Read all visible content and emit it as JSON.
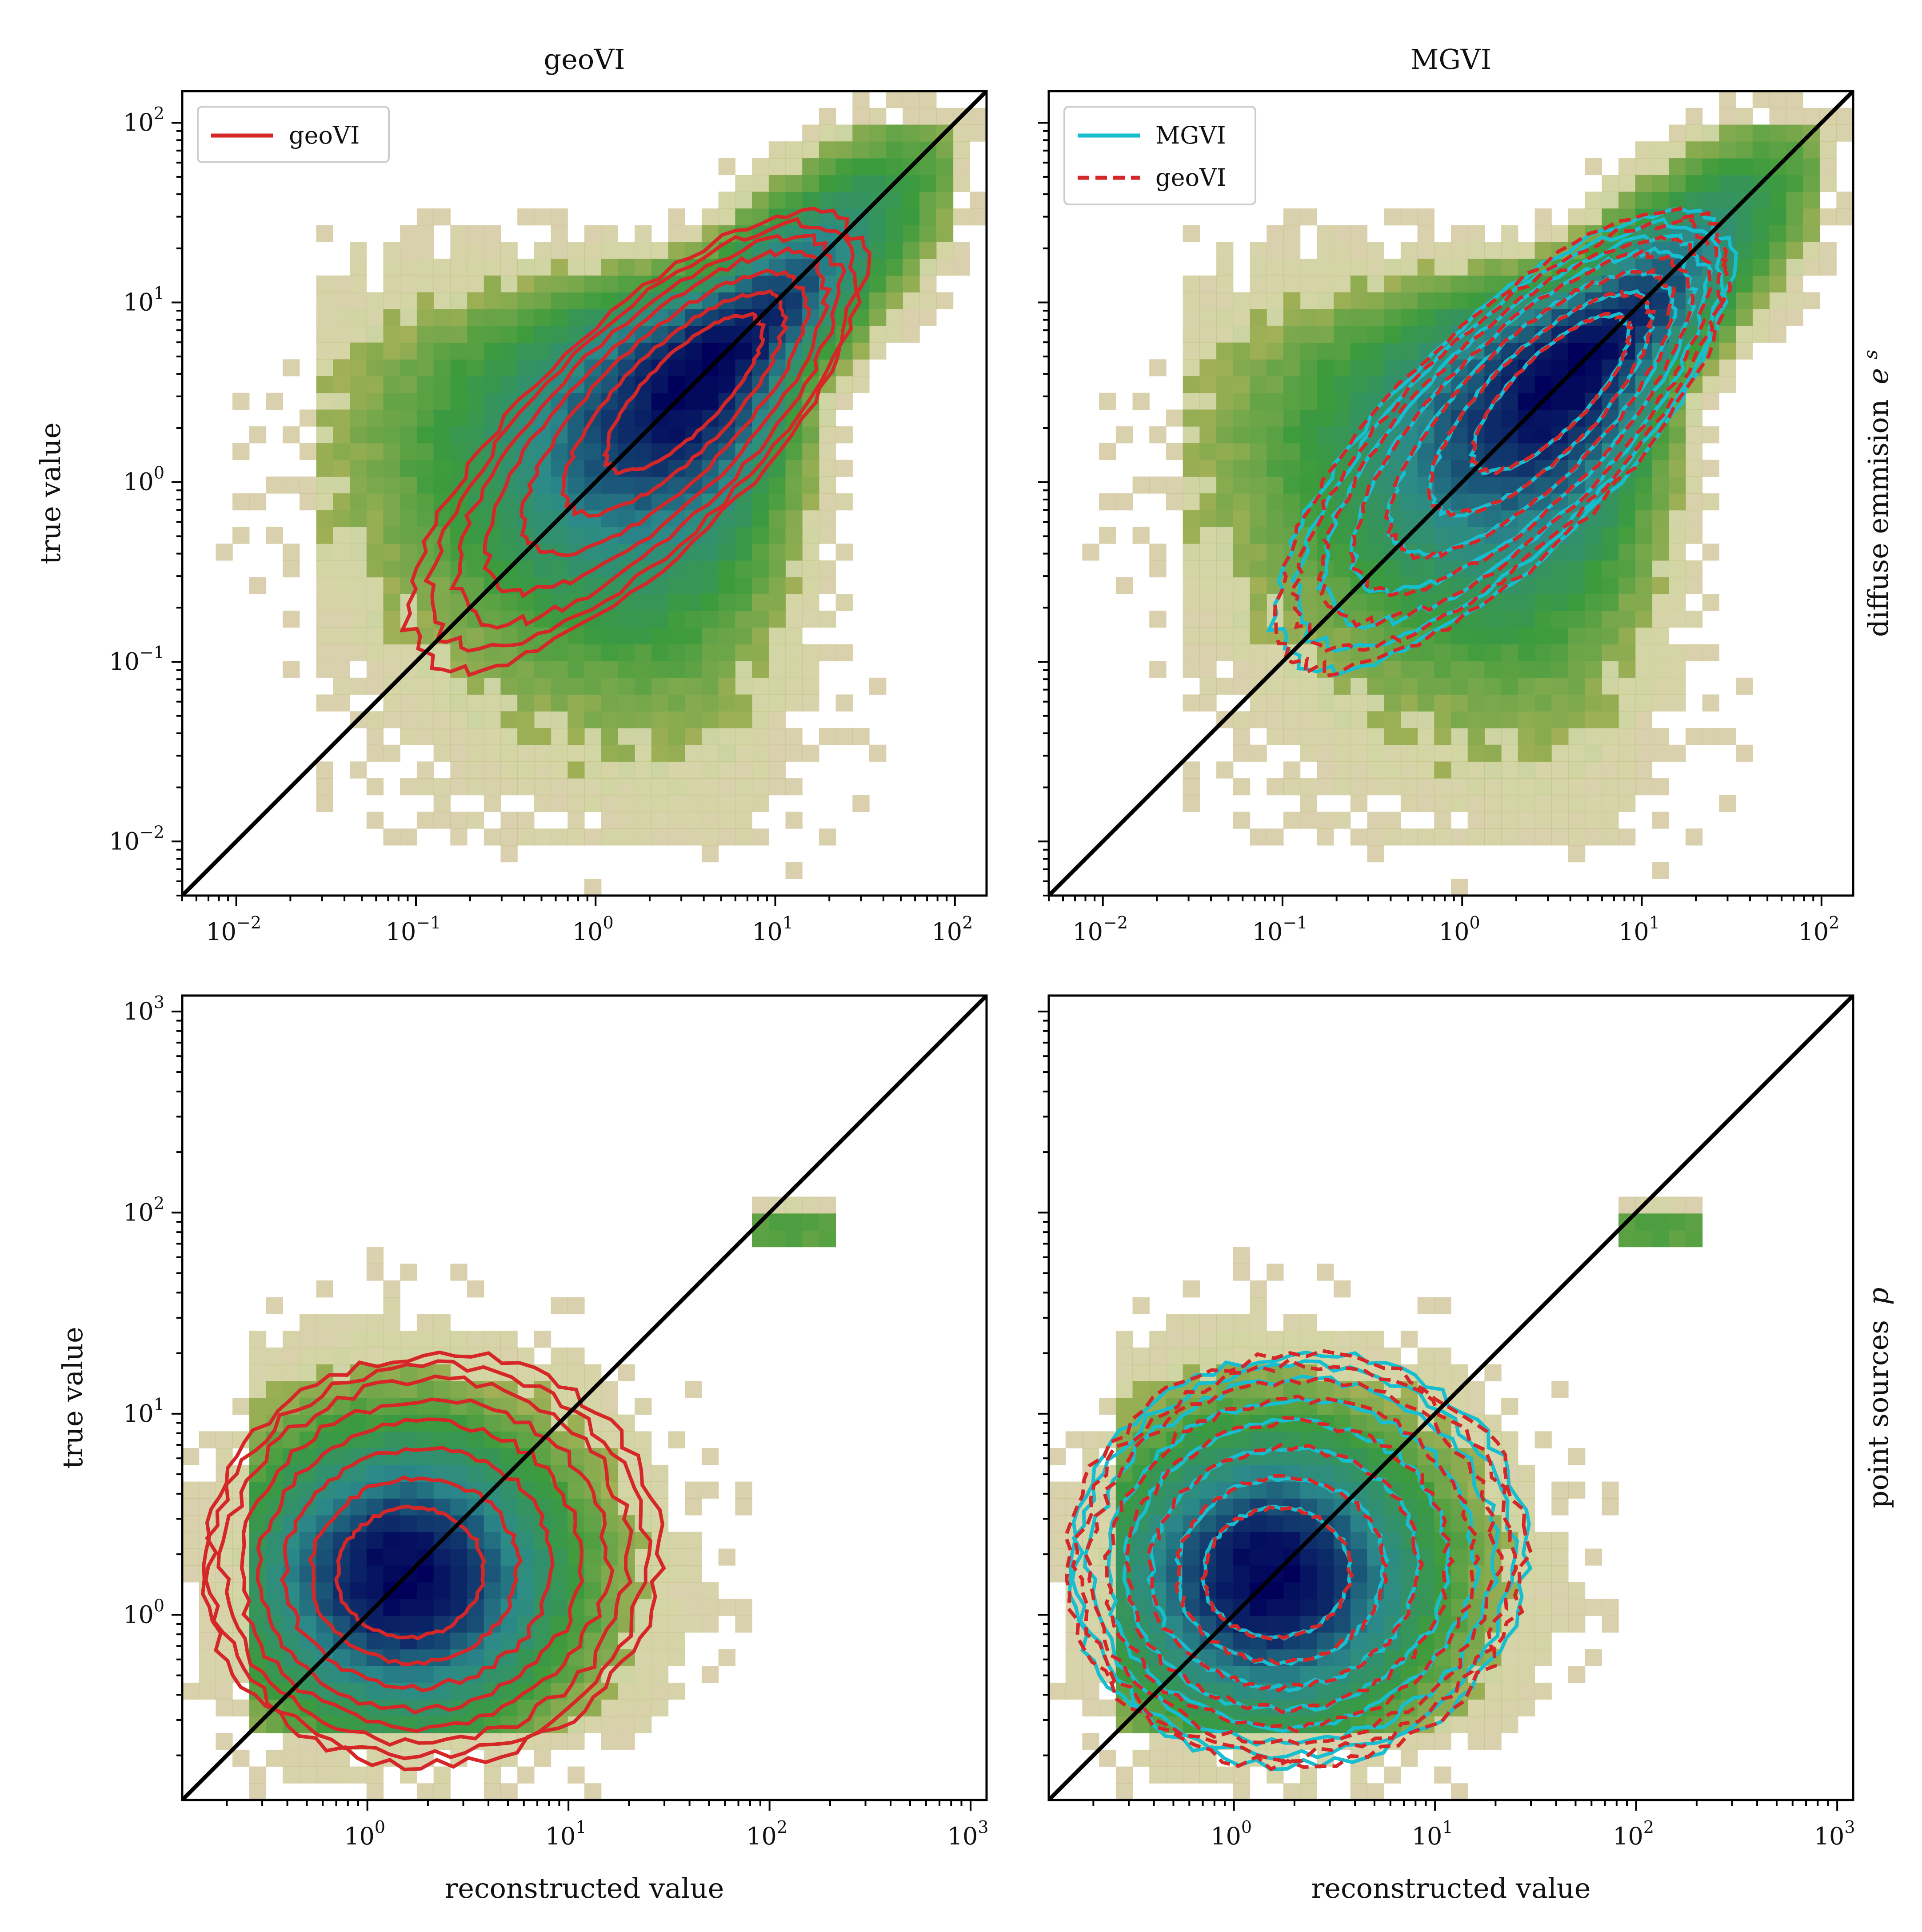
{
  "figure": {
    "column_titles": [
      "geoVI",
      "MGVI"
    ],
    "row_labels": [
      {
        "text": "diffuse emmision",
        "math": "e",
        "sup": "s"
      },
      {
        "text": "point sources",
        "math": "p",
        "sup": ""
      }
    ],
    "colors": {
      "geoVI": "#d62728",
      "MGVI": "#17becf",
      "identity_line": "#000000",
      "density_high": "#00005a",
      "density_mid": "#2b8a8a",
      "density_low": "#3c9b3c",
      "density_edge": "#b0b35a",
      "density_sparse": "#c8a080"
    }
  },
  "chart_data": [
    {
      "type": "heatmap",
      "panel": "top-left",
      "title": "geoVI",
      "xlabel": "",
      "ylabel": "true value",
      "xscale": "log",
      "yscale": "log",
      "xlim": [
        0.005,
        150
      ],
      "ylim": [
        0.005,
        150
      ],
      "xticks": [
        {
          "base": "10",
          "exp": "−2"
        },
        {
          "base": "10",
          "exp": "−1"
        },
        {
          "base": "10",
          "exp": "0"
        },
        {
          "base": "10",
          "exp": "1"
        },
        {
          "base": "10",
          "exp": "2"
        }
      ],
      "yticks": [
        {
          "base": "10",
          "exp": "−2"
        },
        {
          "base": "10",
          "exp": "−1"
        },
        {
          "base": "10",
          "exp": "0"
        },
        {
          "base": "10",
          "exp": "1"
        },
        {
          "base": "10",
          "exp": "2"
        }
      ],
      "legend": {
        "placement": "top-left",
        "entries": [
          {
            "label": "geoVI",
            "style": "solid",
            "color": "#d62728"
          }
        ]
      },
      "density_peak": [
        4,
        4
      ],
      "diagonal": "y = x",
      "contour_series": [
        "geoVI"
      ]
    },
    {
      "type": "heatmap",
      "panel": "top-right",
      "title": "MGVI",
      "xlabel": "",
      "ylabel": "",
      "xscale": "log",
      "yscale": "log",
      "xlim": [
        0.005,
        150
      ],
      "ylim": [
        0.005,
        150
      ],
      "xticks": [
        {
          "base": "10",
          "exp": "−2"
        },
        {
          "base": "10",
          "exp": "−1"
        },
        {
          "base": "10",
          "exp": "0"
        },
        {
          "base": "10",
          "exp": "1"
        },
        {
          "base": "10",
          "exp": "2"
        }
      ],
      "legend": {
        "placement": "top-left",
        "entries": [
          {
            "label": "MGVI",
            "style": "solid",
            "color": "#17becf"
          },
          {
            "label": "geoVI",
            "style": "dashed",
            "color": "#d62728"
          }
        ]
      },
      "density_peak": [
        4,
        4
      ],
      "diagonal": "y = x",
      "contour_series": [
        "MGVI",
        "geoVI"
      ]
    },
    {
      "type": "heatmap",
      "panel": "bottom-left",
      "title": "",
      "xlabel": "reconstructed value",
      "ylabel": "true value",
      "xscale": "log",
      "yscale": "log",
      "xlim": [
        0.12,
        1200
      ],
      "ylim": [
        0.12,
        1200
      ],
      "xticks": [
        {
          "base": "10",
          "exp": "0"
        },
        {
          "base": "10",
          "exp": "1"
        },
        {
          "base": "10",
          "exp": "2"
        },
        {
          "base": "10",
          "exp": "3"
        }
      ],
      "yticks": [
        {
          "base": "10",
          "exp": "0"
        },
        {
          "base": "10",
          "exp": "1"
        },
        {
          "base": "10",
          "exp": "2"
        },
        {
          "base": "10",
          "exp": "3"
        }
      ],
      "density_peak": [
        1.5,
        1.5
      ],
      "diagonal": "y = x",
      "contour_series": [
        "geoVI"
      ]
    },
    {
      "type": "heatmap",
      "panel": "bottom-right",
      "title": "",
      "xlabel": "reconstructed value",
      "ylabel": "",
      "xscale": "log",
      "yscale": "log",
      "xlim": [
        0.12,
        1200
      ],
      "ylim": [
        0.12,
        1200
      ],
      "xticks": [
        {
          "base": "10",
          "exp": "0"
        },
        {
          "base": "10",
          "exp": "1"
        },
        {
          "base": "10",
          "exp": "2"
        },
        {
          "base": "10",
          "exp": "3"
        }
      ],
      "density_peak": [
        1.5,
        1.5
      ],
      "diagonal": "y = x",
      "contour_series": [
        "MGVI",
        "geoVI"
      ]
    }
  ]
}
